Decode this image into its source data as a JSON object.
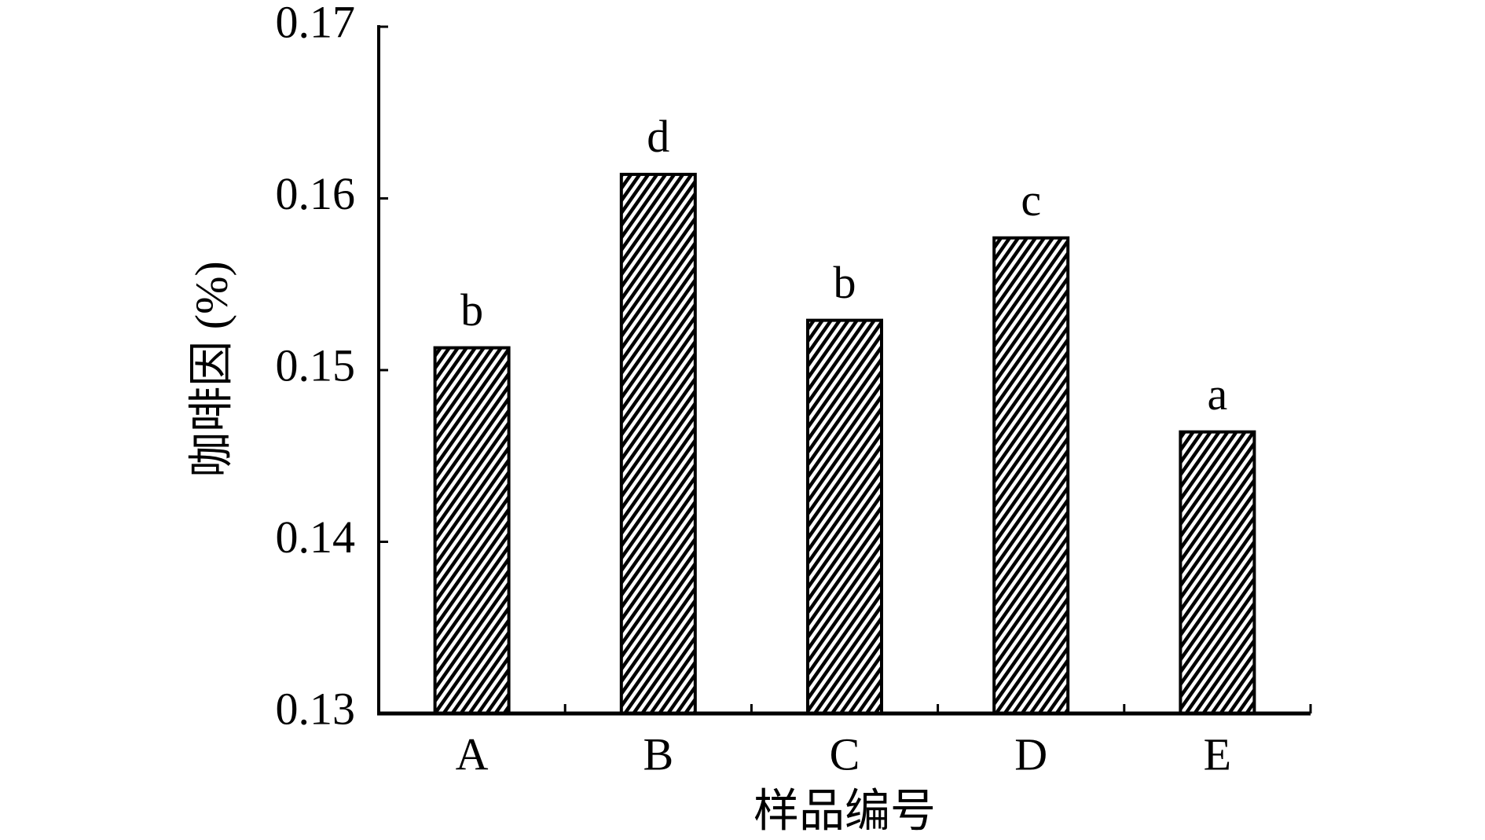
{
  "chart_data": {
    "type": "bar",
    "x_label": "样品编号",
    "y_label": "咖啡因 (%)",
    "categories": [
      "A",
      "B",
      "C",
      "D",
      "E"
    ],
    "values": [
      0.1513,
      0.1614,
      0.1529,
      0.1577,
      0.1464
    ],
    "annotations": [
      "b",
      "d",
      "b",
      "c",
      "a"
    ],
    "ylim": [
      0.13,
      0.17
    ],
    "yticks": [
      0.13,
      0.14,
      0.15,
      0.16,
      0.17
    ]
  }
}
